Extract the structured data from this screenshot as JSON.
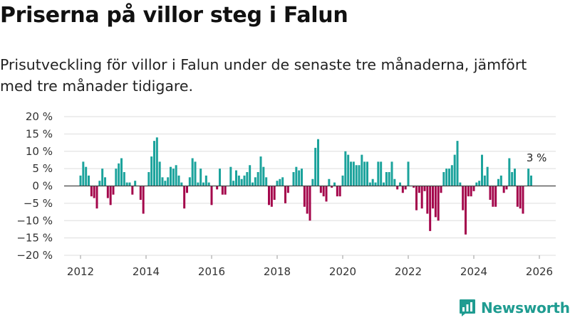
{
  "header": {
    "title": "Priserna på villor steg i Falun",
    "subtitle": "Prisutveckling för villor i Falun under de senaste tre månaderna, jämfört med tre månader tidigare."
  },
  "brand": {
    "name": "Newsworthy"
  },
  "colors": {
    "positive": "#1ba39c",
    "negative": "#a4064b",
    "grid": "#dddddd",
    "zero_line": "#444444",
    "brand": "#1f9c91"
  },
  "chart_data": {
    "type": "bar",
    "title": "Priserna på villor steg i Falun",
    "xlabel": "",
    "ylabel": "",
    "x_start": "2012-01",
    "x_step": "month",
    "xlim": [
      2011.5,
      2026.5
    ],
    "ylim": [
      -20,
      20
    ],
    "grid": true,
    "y_ticks": [
      20,
      15,
      10,
      5,
      0,
      -5,
      -10,
      -15,
      -20
    ],
    "y_tick_labels": [
      "20 %",
      "15 %",
      "10 %",
      "5 %",
      "0 %",
      "−5 %",
      "−10 %",
      "−15 %",
      "−20 %"
    ],
    "x_ticks": [
      2012,
      2014,
      2016,
      2018,
      2020,
      2022,
      2024,
      2026
    ],
    "x_tick_labels": [
      "2012",
      "2014",
      "2016",
      "2018",
      "2020",
      "2022",
      "2024",
      "2026"
    ],
    "annotation": {
      "label": "3 %",
      "value": 3,
      "date": "2025-12"
    },
    "values": [
      3,
      7,
      5.5,
      3,
      -3,
      -3.5,
      -6.5,
      1.5,
      5,
      2.5,
      -3.5,
      -5.5,
      -2.5,
      5,
      6.5,
      8,
      4,
      1,
      1,
      -2.5,
      1.5,
      0,
      -4,
      -8,
      0,
      4,
      8.5,
      13,
      14,
      7,
      2.5,
      1.5,
      2.5,
      5.5,
      5,
      6,
      3,
      1,
      -6.5,
      -2,
      2.5,
      8,
      7,
      1,
      5,
      1,
      3,
      1,
      -5.5,
      0,
      -1,
      5,
      -2.5,
      -2.5,
      0,
      5.5,
      1.5,
      4.5,
      3,
      2,
      3,
      4,
      6,
      1,
      2.5,
      4,
      8.5,
      5.5,
      2.5,
      -5.5,
      -6,
      -4,
      1.5,
      2,
      2.5,
      -5,
      -2,
      0,
      4,
      5.5,
      4.5,
      5,
      -6,
      -8,
      -10,
      2,
      11,
      13.5,
      -2,
      -3,
      -4.5,
      2,
      -0.5,
      1,
      -3,
      -3,
      3,
      10,
      9,
      7,
      7,
      6,
      6,
      9,
      7,
      7,
      1,
      2,
      1,
      7,
      7,
      1,
      4,
      4,
      7,
      2,
      -1,
      1,
      -2,
      -1,
      7,
      0,
      -0.5,
      -7,
      -2,
      -6.5,
      -1.5,
      -8,
      -13,
      -6.5,
      -9,
      -10,
      -2,
      4,
      5,
      5,
      6,
      9,
      13,
      1,
      -7,
      -14,
      -3,
      -3,
      -1.5,
      1,
      1.5,
      9,
      3,
      5.5,
      -4,
      -6,
      -6,
      2,
      3,
      -2,
      -1,
      8,
      4,
      5,
      -6,
      -6.5,
      -8,
      0,
      5,
      3
    ]
  }
}
